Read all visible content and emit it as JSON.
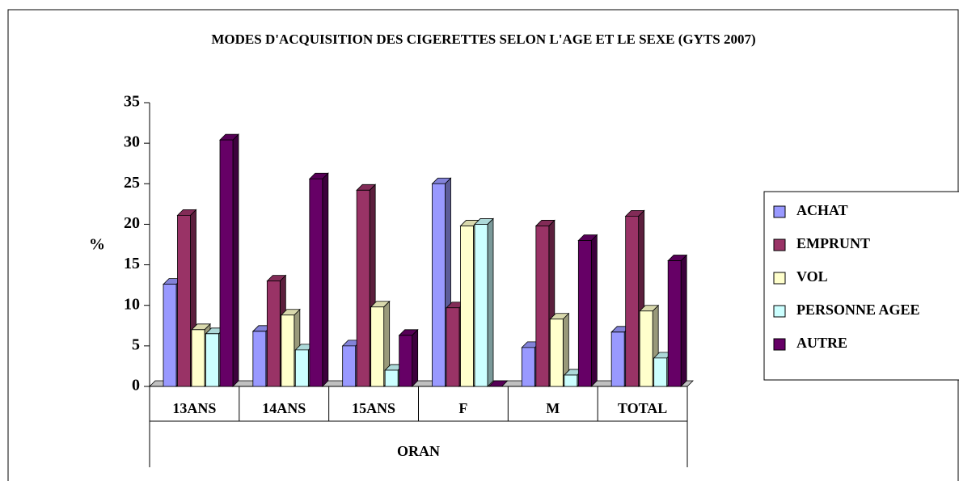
{
  "chart_data": {
    "type": "bar3d",
    "title": "MODES D'ACQUISITION DES CIGERETTES SELON L'AGE ET LE SEXE (GYTS 2007)",
    "y_label": "%",
    "group_label": "ORAN",
    "categories": [
      "13ANS",
      "14ANS",
      "15ANS",
      "F",
      "M",
      "TOTAL"
    ],
    "series": [
      {
        "name": "ACHAT",
        "color": "#9999ff",
        "values": [
          12.6,
          6.8,
          5,
          25,
          4.8,
          6.7
        ]
      },
      {
        "name": "EMPRUNT",
        "color": "#993366",
        "values": [
          21.1,
          13,
          24.2,
          9.7,
          19.8,
          21
        ]
      },
      {
        "name": "VOL",
        "color": "#ffffcc",
        "values": [
          7,
          8.8,
          9.8,
          19.8,
          8.3,
          9.3
        ]
      },
      {
        "name": "PERSONNE AGEE",
        "color": "#ccffff",
        "values": [
          6.5,
          4.5,
          2,
          20,
          1.4,
          3.5
        ]
      },
      {
        "name": "AUTRE",
        "color": "#660066",
        "values": [
          30.4,
          25.6,
          6.3,
          0,
          18,
          15.5
        ]
      }
    ],
    "ylim": [
      0,
      35
    ],
    "yticks": [
      0,
      5,
      10,
      15,
      20,
      25,
      30,
      35
    ],
    "legend": "right"
  }
}
